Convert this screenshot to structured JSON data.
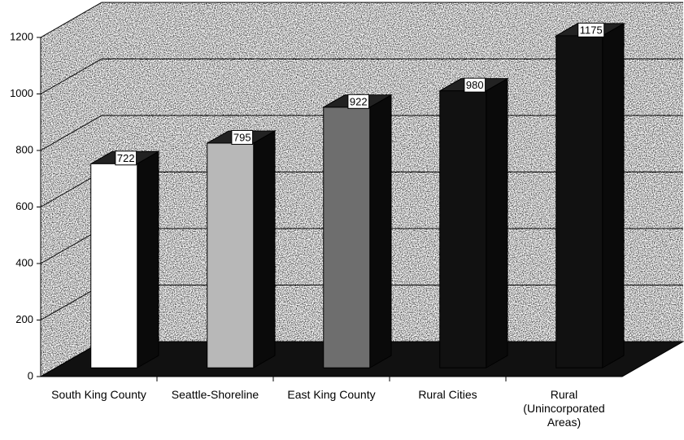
{
  "chart_data": {
    "type": "bar3d",
    "categories": [
      "South King County",
      "Seattle-Shoreline",
      "East King County",
      "Rural Cities",
      "Rural (Unincorporated Areas)"
    ],
    "values": [
      722,
      795,
      922,
      980,
      1175
    ],
    "colors": [
      "#ffffff",
      "#b8b8b8",
      "#6e6e6e",
      "#111111",
      "#111111"
    ],
    "ylim": [
      0,
      1200
    ],
    "yticks": [
      0,
      200,
      400,
      600,
      800,
      1000,
      1200
    ],
    "grid": true
  }
}
